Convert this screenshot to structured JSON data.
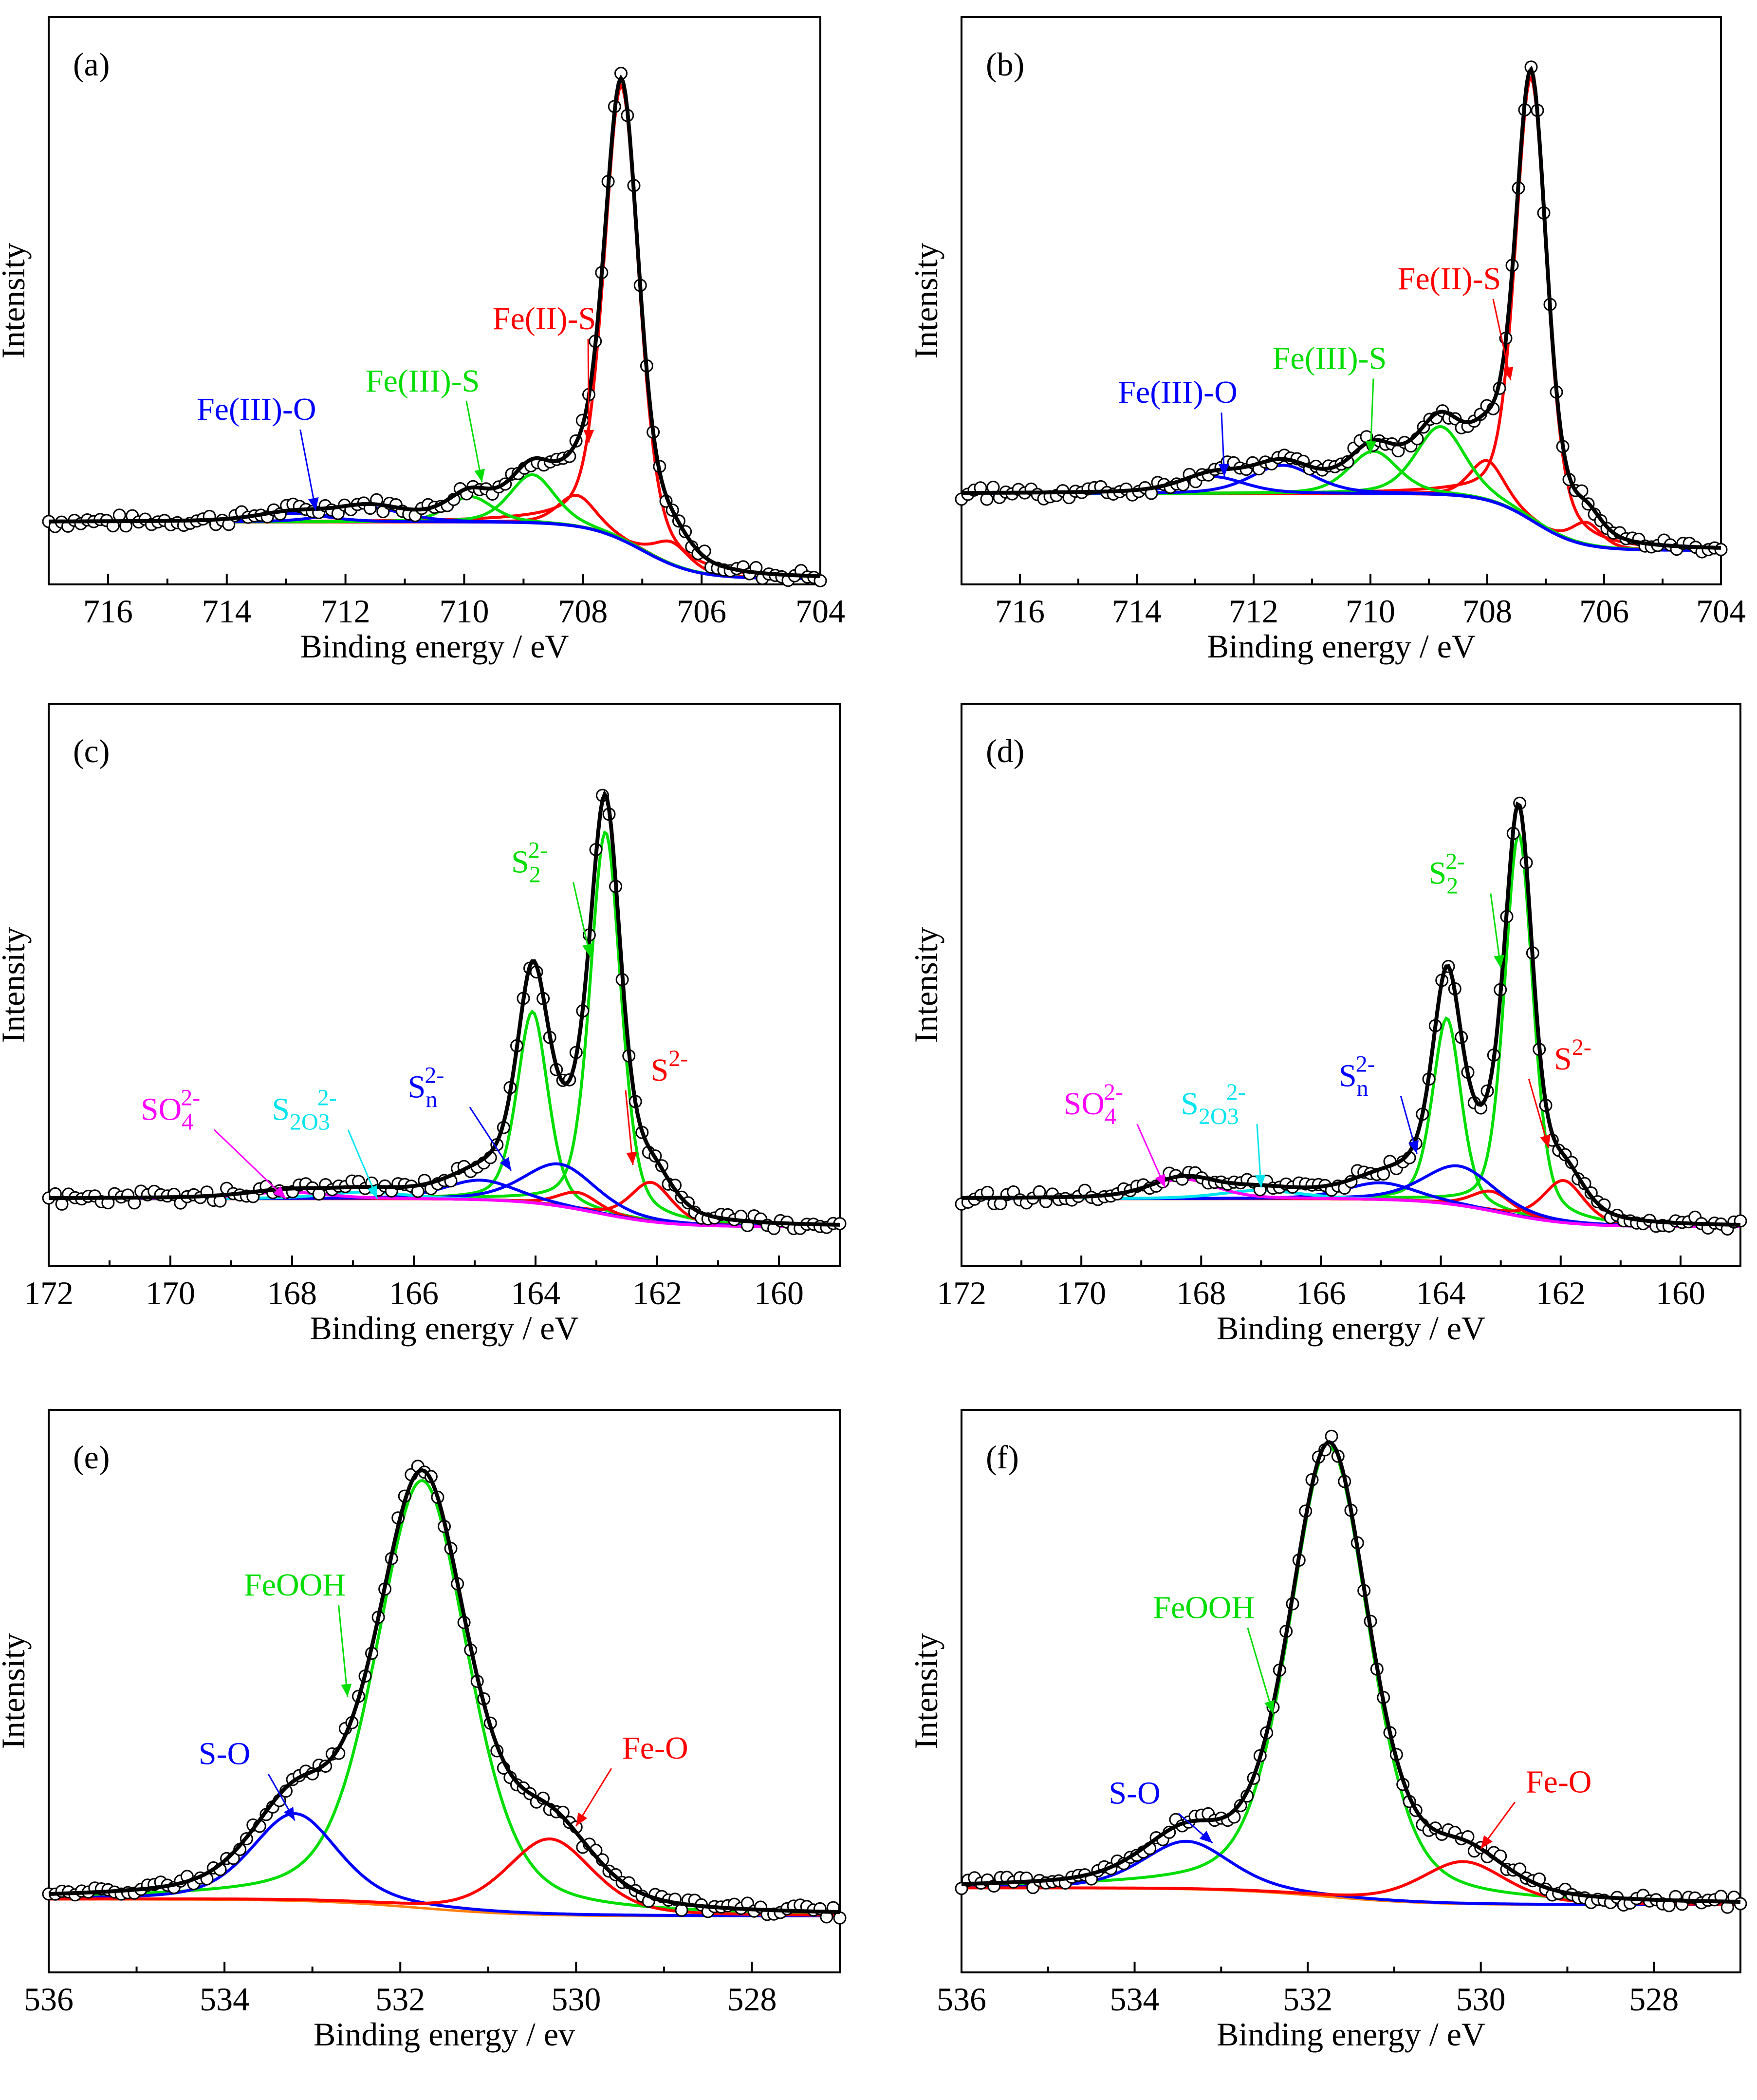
{
  "figure": {
    "layout": "3x2 grid of XPS spectra"
  },
  "colors": {
    "frame": "#000000",
    "envelope": "#000000",
    "background_line": "#ff7f0e",
    "red": "#ff0000",
    "green": "#00dd00",
    "blue": "#0000ff",
    "magenta": "#ff00ff",
    "cyan": "#00e5ee",
    "marker_fill": "#ffffff"
  },
  "chart_data": [
    {
      "panel": "(a)",
      "type": "line",
      "xlabel": "Binding energy / eV",
      "ylabel": "Intensity",
      "xlim": [
        717,
        704
      ],
      "ylim": [
        0,
        100
      ],
      "reversed_x": true,
      "xticks": [
        716,
        714,
        712,
        710,
        708,
        706,
        704
      ],
      "background": {
        "left": 11,
        "right": 1,
        "center": 707.0,
        "width": 0.45
      },
      "components": [
        {
          "name": "Fe(II)-S",
          "color": "red",
          "peaks": [
            [
              707.35,
              80,
              0.35
            ],
            [
              708.1,
              5.5,
              0.38
            ],
            [
              706.5,
              4,
              0.35
            ]
          ]
        },
        {
          "name": "Fe(III)-S",
          "color": "green",
          "peaks": [
            [
              708.85,
              8.5,
              0.45
            ],
            [
              709.9,
              4.5,
              0.45
            ]
          ]
        },
        {
          "name": "Fe(III)-O",
          "color": "blue",
          "peaks": [
            [
              711.6,
              2.5,
              0.7
            ],
            [
              712.9,
              1.5,
              0.7
            ]
          ]
        }
      ],
      "annotations": [
        {
          "text": "Fe(II)-S",
          "color": "red",
          "x": 708.65,
          "y": 45,
          "ax": 707.9,
          "ay": 25
        },
        {
          "text": "Fe(III)-S",
          "color": "green",
          "x": 710.7,
          "y": 34,
          "ax": 709.7,
          "ay": 18
        },
        {
          "text": "Fe(III)-O",
          "color": "blue",
          "x": 713.5,
          "y": 29,
          "ax": 712.5,
          "ay": 13
        }
      ]
    },
    {
      "panel": "(b)",
      "type": "line",
      "xlabel": "Binding energy / eV",
      "ylabel": "Intensity",
      "xlim": [
        717,
        704
      ],
      "ylim": [
        0,
        100
      ],
      "reversed_x": true,
      "xticks": [
        716,
        714,
        712,
        710,
        708,
        706,
        704
      ],
      "background": {
        "left": 16,
        "right": 6,
        "center": 707.2,
        "width": 0.4
      },
      "components": [
        {
          "name": "Fe(II)-S",
          "color": "red",
          "peaks": [
            [
              707.25,
              78,
              0.32
            ],
            [
              708.0,
              7,
              0.35
            ],
            [
              706.3,
              4,
              0.3
            ]
          ]
        },
        {
          "name": "Fe(III)-S",
          "color": "green",
          "peaks": [
            [
              708.8,
              12,
              0.5
            ],
            [
              709.95,
              7.5,
              0.5
            ]
          ]
        },
        {
          "name": "Fe(III)-O",
          "color": "blue",
          "peaks": [
            [
              711.5,
              5,
              0.65
            ],
            [
              712.7,
              3,
              0.65
            ]
          ]
        }
      ],
      "annotations": [
        {
          "text": "Fe(II)-S",
          "color": "red",
          "x": 708.65,
          "y": 52,
          "ax": 707.6,
          "ay": 36
        },
        {
          "text": "Fe(III)-S",
          "color": "green",
          "x": 710.7,
          "y": 38,
          "ax": 710.0,
          "ay": 23
        },
        {
          "text": "Fe(III)-O",
          "color": "blue",
          "x": 713.3,
          "y": 32,
          "ax": 712.5,
          "ay": 19
        }
      ]
    },
    {
      "panel": "(c)",
      "type": "line",
      "xlabel": "Binding energy / eV",
      "ylabel": "Intensity",
      "xlim": [
        172,
        159
      ],
      "ylim": [
        0,
        100
      ],
      "reversed_x": true,
      "xticks": [
        172,
        170,
        168,
        166,
        164,
        162,
        160
      ],
      "background": {
        "left": 12,
        "right": 7,
        "center": 163.0,
        "width": 0.6
      },
      "components": [
        {
          "name": "S_2^2-",
          "color": "green",
          "peaks": [
            [
              162.85,
              68,
              0.3
            ],
            [
              164.05,
              34,
              0.3
            ]
          ]
        },
        {
          "name": "S^2-",
          "color": "red",
          "peaks": [
            [
              162.1,
              7,
              0.4
            ],
            [
              163.3,
              3,
              0.4
            ]
          ]
        },
        {
          "name": "S_n^2-",
          "color": "blue",
          "peaks": [
            [
              163.6,
              7.5,
              0.7
            ],
            [
              164.9,
              3.5,
              0.7
            ]
          ]
        },
        {
          "name": "S_2O_3^2-",
          "color": "cyan",
          "peaks": [
            [
              166.8,
              1.2,
              0.8
            ]
          ]
        },
        {
          "name": "SO_4^2-",
          "color": "magenta",
          "peaks": [
            [
              168.1,
              1.2,
              0.8
            ]
          ]
        }
      ],
      "annotations": [
        {
          "text": "S_2^2-",
          "color": "green",
          "x": 164.1,
          "y": 70,
          "ax": 163.1,
          "ay": 55
        },
        {
          "text": "S^2-",
          "color": "red",
          "x": 161.8,
          "y": 33,
          "ax": 162.4,
          "ay": 18
        },
        {
          "text": "S_n^2-",
          "color": "blue",
          "x": 165.8,
          "y": 30,
          "ax": 164.4,
          "ay": 17
        },
        {
          "text": "S_2O_3^2-",
          "color": "cyan",
          "x": 167.8,
          "y": 26,
          "ax": 166.6,
          "ay": 12
        },
        {
          "text": "SO_4^2-",
          "color": "magenta",
          "x": 170.0,
          "y": 26,
          "ax": 168.1,
          "ay": 12
        }
      ]
    },
    {
      "panel": "(d)",
      "type": "line",
      "xlabel": "Binding energy / eV",
      "ylabel": "Intensity",
      "xlim": [
        172,
        159
      ],
      "ylim": [
        0,
        100
      ],
      "reversed_x": true,
      "xticks": [
        172,
        170,
        168,
        166,
        164,
        162,
        160
      ],
      "background": {
        "left": 12,
        "right": 7,
        "center": 163.0,
        "width": 0.6
      },
      "components": [
        {
          "name": "S_2^2-",
          "color": "green",
          "peaks": [
            [
              162.7,
              68,
              0.28
            ],
            [
              163.9,
              33,
              0.28
            ]
          ]
        },
        {
          "name": "S^2-",
          "color": "red",
          "peaks": [
            [
              161.95,
              7.5,
              0.4
            ],
            [
              163.15,
              3.5,
              0.4
            ]
          ]
        },
        {
          "name": "S_n^2-",
          "color": "blue",
          "peaks": [
            [
              163.7,
              7,
              0.7
            ],
            [
              165.0,
              3,
              0.7
            ]
          ]
        },
        {
          "name": "S_2O_3^2-",
          "color": "cyan",
          "peaks": [
            [
              167.0,
              1.5,
              0.8
            ]
          ]
        },
        {
          "name": "SO_4^2-",
          "color": "magenta",
          "peaks": [
            [
              168.3,
              3.5,
              0.65
            ]
          ]
        }
      ],
      "annotations": [
        {
          "text": "S_2^2-",
          "color": "green",
          "x": 163.9,
          "y": 68,
          "ax": 163.0,
          "ay": 53
        },
        {
          "text": "S^2-",
          "color": "red",
          "x": 161.8,
          "y": 35,
          "ax": 162.2,
          "ay": 21
        },
        {
          "text": "S_n^2-",
          "color": "blue",
          "x": 165.4,
          "y": 32,
          "ax": 164.4,
          "ay": 20
        },
        {
          "text": "S_2O_3^2-",
          "color": "cyan",
          "x": 167.8,
          "y": 27,
          "ax": 167.0,
          "ay": 14
        },
        {
          "text": "SO_4^2-",
          "color": "magenta",
          "x": 169.8,
          "y": 27,
          "ax": 168.6,
          "ay": 14
        }
      ]
    },
    {
      "panel": "(e)",
      "type": "line",
      "xlabel": "Binding energy / ev",
      "ylabel": "Intensity",
      "xlim": [
        536,
        527
      ],
      "ylim": [
        0,
        100
      ],
      "reversed_x": true,
      "xticks": [
        536,
        534,
        532,
        530,
        528
      ],
      "background": {
        "left": 13,
        "right": 10,
        "center": 531.8,
        "width": 0.6
      },
      "components": [
        {
          "name": "FeOOH",
          "color": "green",
          "peaks": [
            [
              531.75,
              76,
              0.62
            ]
          ]
        },
        {
          "name": "S-O",
          "color": "blue",
          "peaks": [
            [
              533.2,
              15.5,
              0.58
            ]
          ]
        },
        {
          "name": "Fe-O",
          "color": "red",
          "peaks": [
            [
              530.3,
              13.5,
              0.58
            ]
          ]
        }
      ],
      "annotations": [
        {
          "text": "FeOOH",
          "color": "green",
          "x": 533.2,
          "y": 67,
          "ax": 532.6,
          "ay": 49
        },
        {
          "text": "S-O",
          "color": "blue",
          "x": 534.0,
          "y": 37,
          "ax": 533.2,
          "ay": 27
        },
        {
          "text": "Fe-O",
          "color": "red",
          "x": 529.1,
          "y": 38,
          "ax": 530.0,
          "ay": 26
        }
      ]
    },
    {
      "panel": "(f)",
      "type": "line",
      "xlabel": "Binding energy / eV",
      "ylabel": "Intensity",
      "xlim": [
        536,
        527
      ],
      "ylim": [
        0,
        100
      ],
      "reversed_x": true,
      "xticks": [
        536,
        534,
        532,
        530,
        528
      ],
      "background": {
        "left": 15,
        "right": 12,
        "center": 531.8,
        "width": 0.6
      },
      "components": [
        {
          "name": "FeOOH",
          "color": "green",
          "peaks": [
            [
              531.75,
              80,
              0.55
            ]
          ]
        },
        {
          "name": "S-O",
          "color": "blue",
          "peaks": [
            [
              533.4,
              8.5,
              0.6
            ]
          ]
        },
        {
          "name": "Fe-O",
          "color": "red",
          "peaks": [
            [
              530.2,
              7.5,
              0.58
            ]
          ]
        }
      ],
      "annotations": [
        {
          "text": "FeOOH",
          "color": "green",
          "x": 533.2,
          "y": 63,
          "ax": 532.4,
          "ay": 46
        },
        {
          "text": "S-O",
          "color": "blue",
          "x": 534.0,
          "y": 30,
          "ax": 533.1,
          "ay": 23
        },
        {
          "text": "Fe-O",
          "color": "red",
          "x": 529.1,
          "y": 32,
          "ax": 530.0,
          "ay": 22
        }
      ]
    }
  ]
}
